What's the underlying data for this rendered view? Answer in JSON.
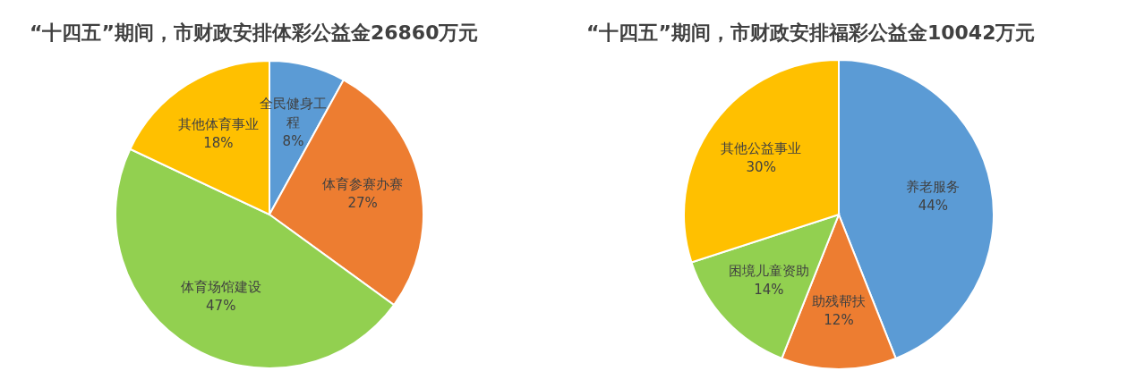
{
  "chart_data": [
    {
      "type": "pie",
      "title": "“十四五”期间，市财政安排体彩公益金26860万元",
      "categories": [
        "全民健身工程",
        "体育参赛办赛",
        "体育场馆建设",
        "其他体育事业"
      ],
      "values": [
        8,
        27,
        47,
        18
      ],
      "value_labels": [
        "8%",
        "27%",
        "47%",
        "18%"
      ],
      "colors": [
        "#5b9bd5",
        "#ed7d31",
        "#92d050",
        "#ffc000"
      ]
    },
    {
      "type": "pie",
      "title": "“十四五”期间，市财政安排福彩公益金10042万元",
      "categories": [
        "养老服务",
        "助残帮扶",
        "困境儿童资助",
        "其他公益事业"
      ],
      "values": [
        44,
        12,
        14,
        30
      ],
      "value_labels": [
        "44%",
        "12%",
        "14%",
        "30%"
      ],
      "colors": [
        "#5b9bd5",
        "#ed7d31",
        "#92d050",
        "#ffc000"
      ]
    }
  ]
}
